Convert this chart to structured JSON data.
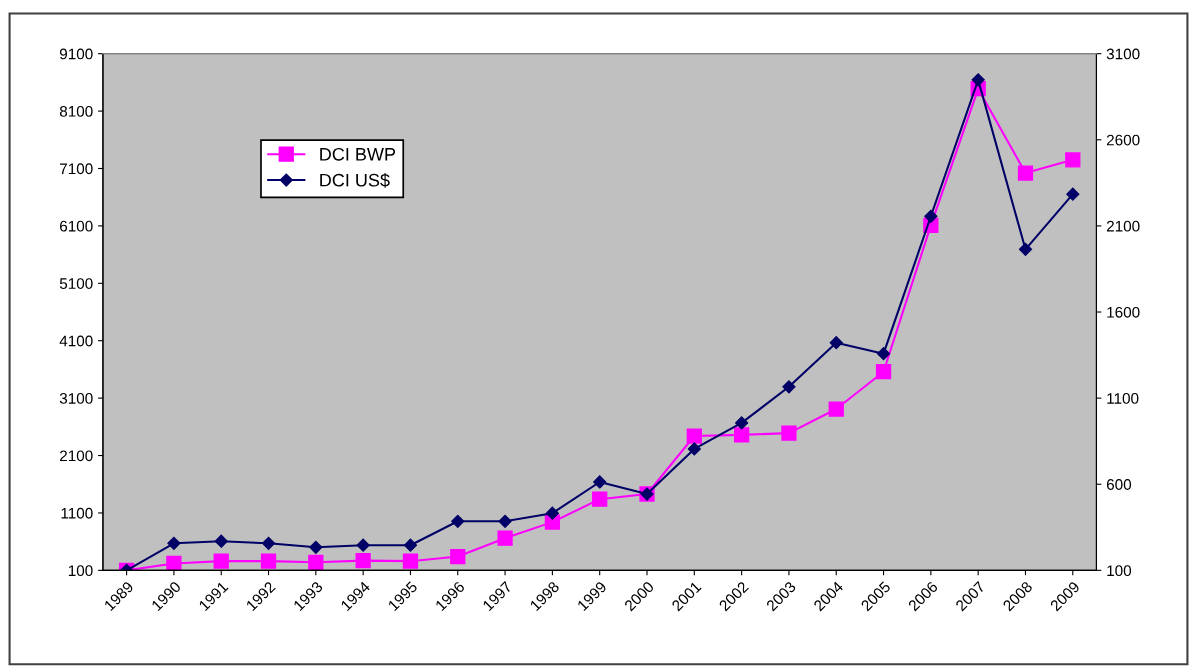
{
  "chart_data": {
    "type": "line",
    "categories": [
      "1989",
      "1990",
      "1991",
      "1992",
      "1993",
      "1994",
      "1995",
      "1996",
      "1997",
      "1998",
      "1999",
      "2000",
      "2001",
      "2002",
      "2003",
      "2004",
      "2005",
      "2006",
      "2007",
      "2008",
      "2009"
    ],
    "series": [
      {
        "name": "DCI BWP",
        "color": "#ff00ff",
        "marker": "square",
        "values": [
          100,
          220,
          260,
          260,
          240,
          270,
          260,
          340,
          660,
          940,
          1340,
          1430,
          2440,
          2460,
          2490,
          2910,
          3560,
          6110,
          8490,
          7020,
          7250
        ]
      },
      {
        "name": "DCI US$",
        "color": "#000066",
        "marker": "diamond",
        "axis": "y2",
        "values": [
          100,
          257,
          269,
          257,
          234,
          246,
          246,
          385,
          385,
          432,
          613,
          543,
          805,
          956,
          1166,
          1422,
          1358,
          2156,
          2948,
          1964,
          2284
        ]
      }
    ],
    "ylim": [
      100,
      9100
    ],
    "yticks": [
      100,
      1100,
      2100,
      3100,
      4100,
      5100,
      6100,
      7100,
      8100,
      9100
    ],
    "y2lim": [
      100,
      3100
    ],
    "y2ticks": [
      100,
      600,
      1100,
      1600,
      2100,
      2600,
      3100
    ],
    "grid": false,
    "legend": "top left",
    "line_style": "solid"
  }
}
